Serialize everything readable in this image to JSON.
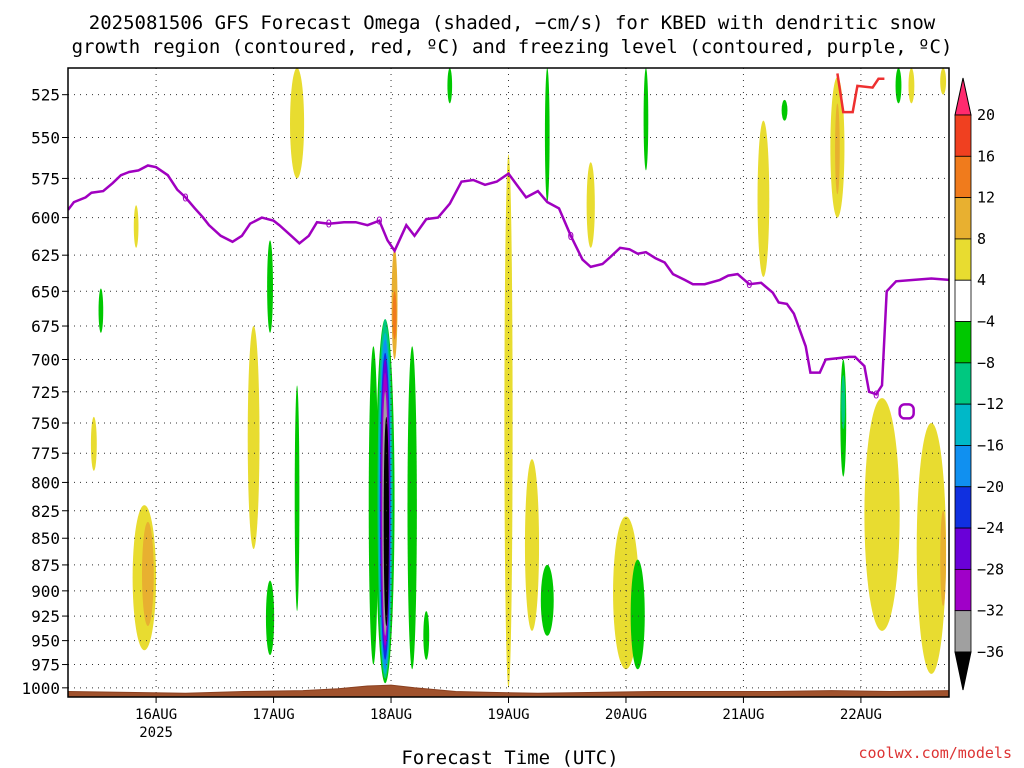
{
  "title": {
    "line1": "2025081506 GFS Forecast Omega (shaded, −cm/s) for KBED with dendritic snow",
    "line2": "growth region (contoured, red, ºC) and freezing level (contoured, purple, ºC)"
  },
  "credit": "coolwx.com/models",
  "chart_data": {
    "type": "heatmap",
    "title": "2025081506 GFS Forecast Omega (shaded, −cm/s) for KBED with dendritic snow growth region (contoured, red, ºC) and freezing level (contoured, purple, ºC)",
    "xlabel": "Forecast Time (UTC)",
    "ylabel": "",
    "x_ticks": [
      {
        "t": 0.75,
        "label": "16AUG",
        "sub": "2025"
      },
      {
        "t": 1.75,
        "label": "17AUG",
        "sub": ""
      },
      {
        "t": 2.75,
        "label": "18AUG",
        "sub": ""
      },
      {
        "t": 3.75,
        "label": "19AUG",
        "sub": ""
      },
      {
        "t": 4.75,
        "label": "20AUG",
        "sub": ""
      },
      {
        "t": 5.75,
        "label": "21AUG",
        "sub": ""
      },
      {
        "t": 6.75,
        "label": "22AUG",
        "sub": ""
      }
    ],
    "xlim": [
      0,
      7.5
    ],
    "y_levels": [
      525,
      550,
      575,
      600,
      625,
      650,
      675,
      700,
      725,
      750,
      775,
      800,
      825,
      850,
      875,
      900,
      925,
      950,
      975,
      1000
    ],
    "ylim": [
      1010,
      510
    ],
    "y_scale": "log-pressure",
    "grid": true,
    "colorbar": {
      "levels": [
        20,
        16,
        12,
        8,
        4,
        -4,
        -8,
        -12,
        -16,
        -20,
        -24,
        -28,
        -32,
        -36
      ],
      "colors": [
        "#ff2a6e",
        "#f04020",
        "#f07b1c",
        "#e8b030",
        "#e8dc30",
        "#ffffff",
        "#00c800",
        "#00c880",
        "#00b8c8",
        "#1090f0",
        "#1030e0",
        "#6a00d8",
        "#a000c8",
        "#a0a0a0",
        "#000000"
      ]
    },
    "freezing_level_label": "0",
    "freezing_level": [
      {
        "t": 0.0,
        "p": 595
      },
      {
        "t": 0.05,
        "p": 590
      },
      {
        "t": 0.15,
        "p": 587
      },
      {
        "t": 0.2,
        "p": 584
      },
      {
        "t": 0.3,
        "p": 583
      },
      {
        "t": 0.38,
        "p": 578
      },
      {
        "t": 0.45,
        "p": 573
      },
      {
        "t": 0.52,
        "p": 571
      },
      {
        "t": 0.6,
        "p": 570
      },
      {
        "t": 0.68,
        "p": 567
      },
      {
        "t": 0.75,
        "p": 568
      },
      {
        "t": 0.85,
        "p": 573
      },
      {
        "t": 0.93,
        "p": 582
      },
      {
        "t": 1.0,
        "p": 587
      },
      {
        "t": 1.08,
        "p": 594
      },
      {
        "t": 1.15,
        "p": 600
      },
      {
        "t": 1.2,
        "p": 605
      },
      {
        "t": 1.3,
        "p": 612
      },
      {
        "t": 1.4,
        "p": 616
      },
      {
        "t": 1.48,
        "p": 612
      },
      {
        "t": 1.55,
        "p": 604
      },
      {
        "t": 1.65,
        "p": 600
      },
      {
        "t": 1.75,
        "p": 602
      },
      {
        "t": 1.8,
        "p": 605
      },
      {
        "t": 1.9,
        "p": 612
      },
      {
        "t": 1.97,
        "p": 617
      },
      {
        "t": 2.05,
        "p": 612
      },
      {
        "t": 2.12,
        "p": 603
      },
      {
        "t": 2.22,
        "p": 604
      },
      {
        "t": 2.35,
        "p": 603
      },
      {
        "t": 2.45,
        "p": 603
      },
      {
        "t": 2.55,
        "p": 605
      },
      {
        "t": 2.65,
        "p": 602
      },
      {
        "t": 2.72,
        "p": 615
      },
      {
        "t": 2.78,
        "p": 622
      },
      {
        "t": 2.88,
        "p": 605
      },
      {
        "t": 2.95,
        "p": 612
      },
      {
        "t": 3.05,
        "p": 601
      },
      {
        "t": 3.15,
        "p": 600
      },
      {
        "t": 3.25,
        "p": 591
      },
      {
        "t": 3.35,
        "p": 577
      },
      {
        "t": 3.45,
        "p": 576
      },
      {
        "t": 3.55,
        "p": 579
      },
      {
        "t": 3.65,
        "p": 577
      },
      {
        "t": 3.75,
        "p": 572
      },
      {
        "t": 3.82,
        "p": 579
      },
      {
        "t": 3.9,
        "p": 587
      },
      {
        "t": 4.0,
        "p": 583
      },
      {
        "t": 4.08,
        "p": 590
      },
      {
        "t": 4.18,
        "p": 594
      },
      {
        "t": 4.28,
        "p": 612
      },
      {
        "t": 4.38,
        "p": 628
      },
      {
        "t": 4.45,
        "p": 633
      },
      {
        "t": 4.55,
        "p": 631
      },
      {
        "t": 4.62,
        "p": 626
      },
      {
        "t": 4.7,
        "p": 620
      },
      {
        "t": 4.78,
        "p": 621
      },
      {
        "t": 4.85,
        "p": 624
      },
      {
        "t": 4.92,
        "p": 623
      },
      {
        "t": 5.0,
        "p": 627
      },
      {
        "t": 5.08,
        "p": 630
      },
      {
        "t": 5.15,
        "p": 638
      },
      {
        "t": 5.25,
        "p": 642
      },
      {
        "t": 5.32,
        "p": 645
      },
      {
        "t": 5.42,
        "p": 645
      },
      {
        "t": 5.55,
        "p": 642
      },
      {
        "t": 5.62,
        "p": 639
      },
      {
        "t": 5.7,
        "p": 638
      },
      {
        "t": 5.8,
        "p": 645
      },
      {
        "t": 5.9,
        "p": 644
      },
      {
        "t": 6.0,
        "p": 651
      },
      {
        "t": 6.05,
        "p": 658
      },
      {
        "t": 6.12,
        "p": 659
      },
      {
        "t": 6.18,
        "p": 666
      },
      {
        "t": 6.28,
        "p": 690
      },
      {
        "t": 6.32,
        "p": 710
      },
      {
        "t": 6.4,
        "p": 710
      },
      {
        "t": 6.45,
        "p": 700
      },
      {
        "t": 6.55,
        "p": 699
      },
      {
        "t": 6.65,
        "p": 698
      },
      {
        "t": 6.7,
        "p": 698
      },
      {
        "t": 6.78,
        "p": 705
      },
      {
        "t": 6.82,
        "p": 725
      },
      {
        "t": 6.88,
        "p": 727
      },
      {
        "t": 6.93,
        "p": 720
      },
      {
        "t": 6.97,
        "p": 650
      },
      {
        "t": 7.05,
        "p": 643
      },
      {
        "t": 7.2,
        "p": 642
      },
      {
        "t": 7.35,
        "p": 641
      },
      {
        "t": 7.5,
        "p": 642
      }
    ],
    "dendritic_region": [
      {
        "t": 6.55,
        "p": 513
      },
      {
        "t": 6.6,
        "p": 535
      },
      {
        "t": 6.68,
        "p": 535
      },
      {
        "t": 6.72,
        "p": 520
      },
      {
        "t": 6.85,
        "p": 521
      },
      {
        "t": 6.9,
        "p": 516
      },
      {
        "t": 6.95,
        "p": 516
      }
    ],
    "omega_areas": [
      {
        "cat": "up4",
        "cx": 3.75,
        "p1": 1000,
        "p2": 560,
        "w": 0.07
      },
      {
        "cat": "up8",
        "cx": 2.78,
        "p1": 700,
        "p2": 620,
        "w": 0.05
      },
      {
        "cat": "up12",
        "cx": 2.78,
        "p1": 685,
        "p2": 650,
        "w": 0.02
      },
      {
        "cat": "up4",
        "cx": 0.65,
        "p1": 960,
        "p2": 820,
        "w": 0.2
      },
      {
        "cat": "up8",
        "cx": 0.68,
        "p1": 935,
        "p2": 835,
        "w": 0.1
      },
      {
        "cat": "up4",
        "cx": 0.58,
        "p1": 620,
        "p2": 592,
        "w": 0.04
      },
      {
        "cat": "up4",
        "cx": 0.22,
        "p1": 790,
        "p2": 745,
        "w": 0.05
      },
      {
        "cat": "up4",
        "cx": 1.58,
        "p1": 860,
        "p2": 675,
        "w": 0.1
      },
      {
        "cat": "up4",
        "cx": 1.95,
        "p1": 575,
        "p2": 510,
        "w": 0.12
      },
      {
        "cat": "up4",
        "cx": 3.95,
        "p1": 940,
        "p2": 780,
        "w": 0.12
      },
      {
        "cat": "up4",
        "cx": 4.75,
        "p1": 980,
        "p2": 830,
        "w": 0.22
      },
      {
        "cat": "up4",
        "cx": 4.45,
        "p1": 620,
        "p2": 565,
        "w": 0.07
      },
      {
        "cat": "up4",
        "cx": 5.92,
        "p1": 640,
        "p2": 540,
        "w": 0.1
      },
      {
        "cat": "up4",
        "cx": 6.55,
        "p1": 600,
        "p2": 515,
        "w": 0.12
      },
      {
        "cat": "up8",
        "cx": 6.55,
        "p1": 585,
        "p2": 530,
        "w": 0.04
      },
      {
        "cat": "up4",
        "cx": 6.93,
        "p1": 940,
        "p2": 730,
        "w": 0.3
      },
      {
        "cat": "up4",
        "cx": 7.35,
        "p1": 985,
        "p2": 750,
        "w": 0.25
      },
      {
        "cat": "up8",
        "cx": 7.45,
        "p1": 915,
        "p2": 825,
        "w": 0.05
      },
      {
        "cat": "up4",
        "cx": 7.45,
        "p1": 525,
        "p2": 510,
        "w": 0.05
      },
      {
        "cat": "up4",
        "cx": 7.18,
        "p1": 530,
        "p2": 510,
        "w": 0.05
      },
      {
        "cat": "dn4",
        "cx": 1.72,
        "p1": 680,
        "p2": 615,
        "w": 0.05
      },
      {
        "cat": "dn4",
        "cx": 1.72,
        "p1": 965,
        "p2": 890,
        "w": 0.07
      },
      {
        "cat": "dn4",
        "cx": 0.28,
        "p1": 680,
        "p2": 648,
        "w": 0.04
      },
      {
        "cat": "dn4",
        "cx": 1.95,
        "p1": 920,
        "p2": 720,
        "w": 0.04
      },
      {
        "cat": "dn4",
        "cx": 3.25,
        "p1": 530,
        "p2": 510,
        "w": 0.04
      },
      {
        "cat": "dn4",
        "cx": 4.08,
        "p1": 945,
        "p2": 875,
        "w": 0.11
      },
      {
        "cat": "dn4",
        "cx": 4.08,
        "p1": 590,
        "p2": 510,
        "w": 0.04
      },
      {
        "cat": "dn4",
        "cx": 4.85,
        "p1": 980,
        "p2": 870,
        "w": 0.12
      },
      {
        "cat": "dn4",
        "cx": 4.92,
        "p1": 570,
        "p2": 510,
        "w": 0.04
      },
      {
        "cat": "dn4",
        "cx": 3.05,
        "p1": 970,
        "p2": 920,
        "w": 0.05
      },
      {
        "cat": "dn4",
        "cx": 6.6,
        "p1": 795,
        "p2": 700,
        "w": 0.05
      },
      {
        "cat": "dn4",
        "cx": 7.07,
        "p1": 530,
        "p2": 510,
        "w": 0.05
      },
      {
        "cat": "dn4",
        "cx": 6.1,
        "p1": 540,
        "p2": 528,
        "w": 0.05
      },
      {
        "cat": "dn8",
        "cx": 6.6,
        "p1": 755,
        "p2": 712,
        "w": 0.02
      },
      {
        "cat": "dn4",
        "cx": 2.93,
        "p1": 980,
        "p2": 690,
        "w": 0.08
      },
      {
        "cat": "dn4",
        "cx": 2.6,
        "p1": 975,
        "p2": 690,
        "w": 0.08
      },
      {
        "cat": "dn4",
        "cx": 2.7,
        "p1": 995,
        "p2": 670,
        "w": 0.16
      },
      {
        "cat": "dn8",
        "cx": 2.7,
        "p1": 990,
        "p2": 670,
        "w": 0.13
      },
      {
        "cat": "dn12",
        "cx": 2.7,
        "p1": 985,
        "p2": 680,
        "w": 0.11
      },
      {
        "cat": "dn16",
        "cx": 2.7,
        "p1": 980,
        "p2": 685,
        "w": 0.1
      },
      {
        "cat": "dn20",
        "cx": 2.7,
        "p1": 970,
        "p2": 695,
        "w": 0.09
      },
      {
        "cat": "dn24",
        "cx": 2.7,
        "p1": 960,
        "p2": 700,
        "w": 0.08
      },
      {
        "cat": "dn28",
        "cx": 2.7,
        "p1": 955,
        "p2": 710,
        "w": 0.07
      },
      {
        "cat": "dn32",
        "cx": 2.7,
        "p1": 945,
        "p2": 725,
        "w": 0.05
      },
      {
        "cat": "dn36",
        "cx": 2.71,
        "p1": 935,
        "p2": 745,
        "w": 0.045
      }
    ],
    "surface": [
      {
        "t": 0.0,
        "p": 1004
      },
      {
        "t": 0.5,
        "p": 1005
      },
      {
        "t": 1.0,
        "p": 1006
      },
      {
        "t": 1.5,
        "p": 1004
      },
      {
        "t": 2.0,
        "p": 1003
      },
      {
        "t": 2.3,
        "p": 1001
      },
      {
        "t": 2.55,
        "p": 998
      },
      {
        "t": 2.75,
        "p": 997
      },
      {
        "t": 2.95,
        "p": 1000
      },
      {
        "t": 3.3,
        "p": 1004
      },
      {
        "t": 3.6,
        "p": 1005
      },
      {
        "t": 4.0,
        "p": 1006
      },
      {
        "t": 4.5,
        "p": 1005
      },
      {
        "t": 5.0,
        "p": 1004
      },
      {
        "t": 5.5,
        "p": 1004
      },
      {
        "t": 6.0,
        "p": 1004
      },
      {
        "t": 6.5,
        "p": 1003
      },
      {
        "t": 7.0,
        "p": 1004
      },
      {
        "t": 7.5,
        "p": 1003
      }
    ]
  }
}
